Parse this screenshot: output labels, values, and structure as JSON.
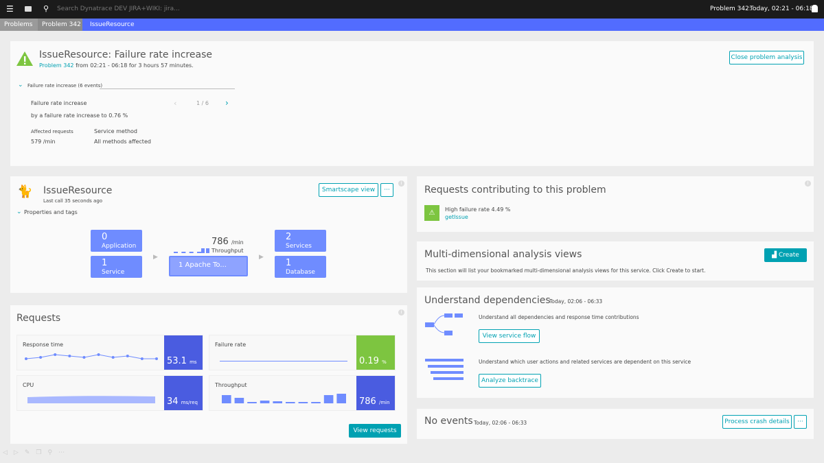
{
  "topbar": {
    "search_placeholder": "Search Dynatrace DEV JIRA+WIKI: jira...",
    "problem_label": "Problem 342:",
    "timeframe": "Today, 02:21 - 06:18"
  },
  "breadcrumb": [
    "Problems",
    "Problem 342",
    "IssueResource"
  ],
  "problem": {
    "title": "IssueResource: Failure rate increase",
    "link": "Problem 342",
    "subtitle": " from 02:21 - 06:18 for 3 hours 57 minutes.",
    "close_button": "Close problem analysis",
    "events_toggle": "Failure rate increase (6 events)",
    "event_title": "Failure rate increase",
    "event_desc": "by a failure rate increase to 0.76 %",
    "pager": "1 / 6",
    "affected_label": "Affected requests",
    "affected_value": "579 /min",
    "method_label": "Service method",
    "method_value": "All methods affected"
  },
  "service": {
    "name": "IssueResource",
    "last_call": "Last call 35 seconds ago",
    "smartscape_button": "Smartscape view",
    "more_button": "···",
    "properties": "Properties and tags",
    "tiles": {
      "application": {
        "n": "0",
        "l": "Application"
      },
      "service": {
        "n": "1",
        "l": "Service"
      },
      "services": {
        "n": "2",
        "l": "Services"
      },
      "database": {
        "n": "1",
        "l": "Database"
      }
    },
    "throughput_value": "786",
    "throughput_unit": "/min",
    "throughput_label": "Throughput",
    "process": "1 Apache To..."
  },
  "requests": {
    "title": "Requests",
    "view_button": "View requests",
    "metrics": [
      {
        "label": "Response time",
        "value": "53.1",
        "unit": "ms"
      },
      {
        "label": "Failure rate",
        "value": "0.19",
        "unit": "%"
      },
      {
        "label": "CPU",
        "value": "34",
        "unit": "ms/req"
      },
      {
        "label": "Throughput",
        "value": "786",
        "unit": "/min"
      }
    ],
    "response_series": [
      53,
      54,
      56,
      55,
      54,
      56,
      54,
      55,
      53,
      53
    ],
    "throughput_series": [
      6,
      4,
      1,
      2,
      1.5,
      1,
      1,
      1,
      6,
      7
    ]
  },
  "contributing": {
    "title": "Requests contributing to this problem",
    "item": "High failure rate 4.49 %",
    "link": "getIssue"
  },
  "mda": {
    "title": "Multi-dimensional analysis views",
    "create_button": "Create",
    "desc": "This section will list your bookmarked multi-dimensional analysis views for this service. Click Create to start."
  },
  "deps": {
    "title": "Understand dependencies",
    "time": "Today, 02:06 - 06:33",
    "flow_desc": "Understand all dependencies and response time contributions",
    "flow_button": "View service flow",
    "back_desc": "Understand which user actions and related services are dependent on this service",
    "back_button": "Analyze backtrace"
  },
  "events": {
    "title": "No events",
    "time": "Today, 02:06 - 06:33",
    "crash_button": "Process crash details",
    "more_button": "···"
  },
  "colors": {
    "accent": "#00a1b2",
    "tile": "#6f8cff",
    "metric": "#4a5ce0",
    "ok": "#7dc540",
    "crumb_active": "#526cff"
  }
}
